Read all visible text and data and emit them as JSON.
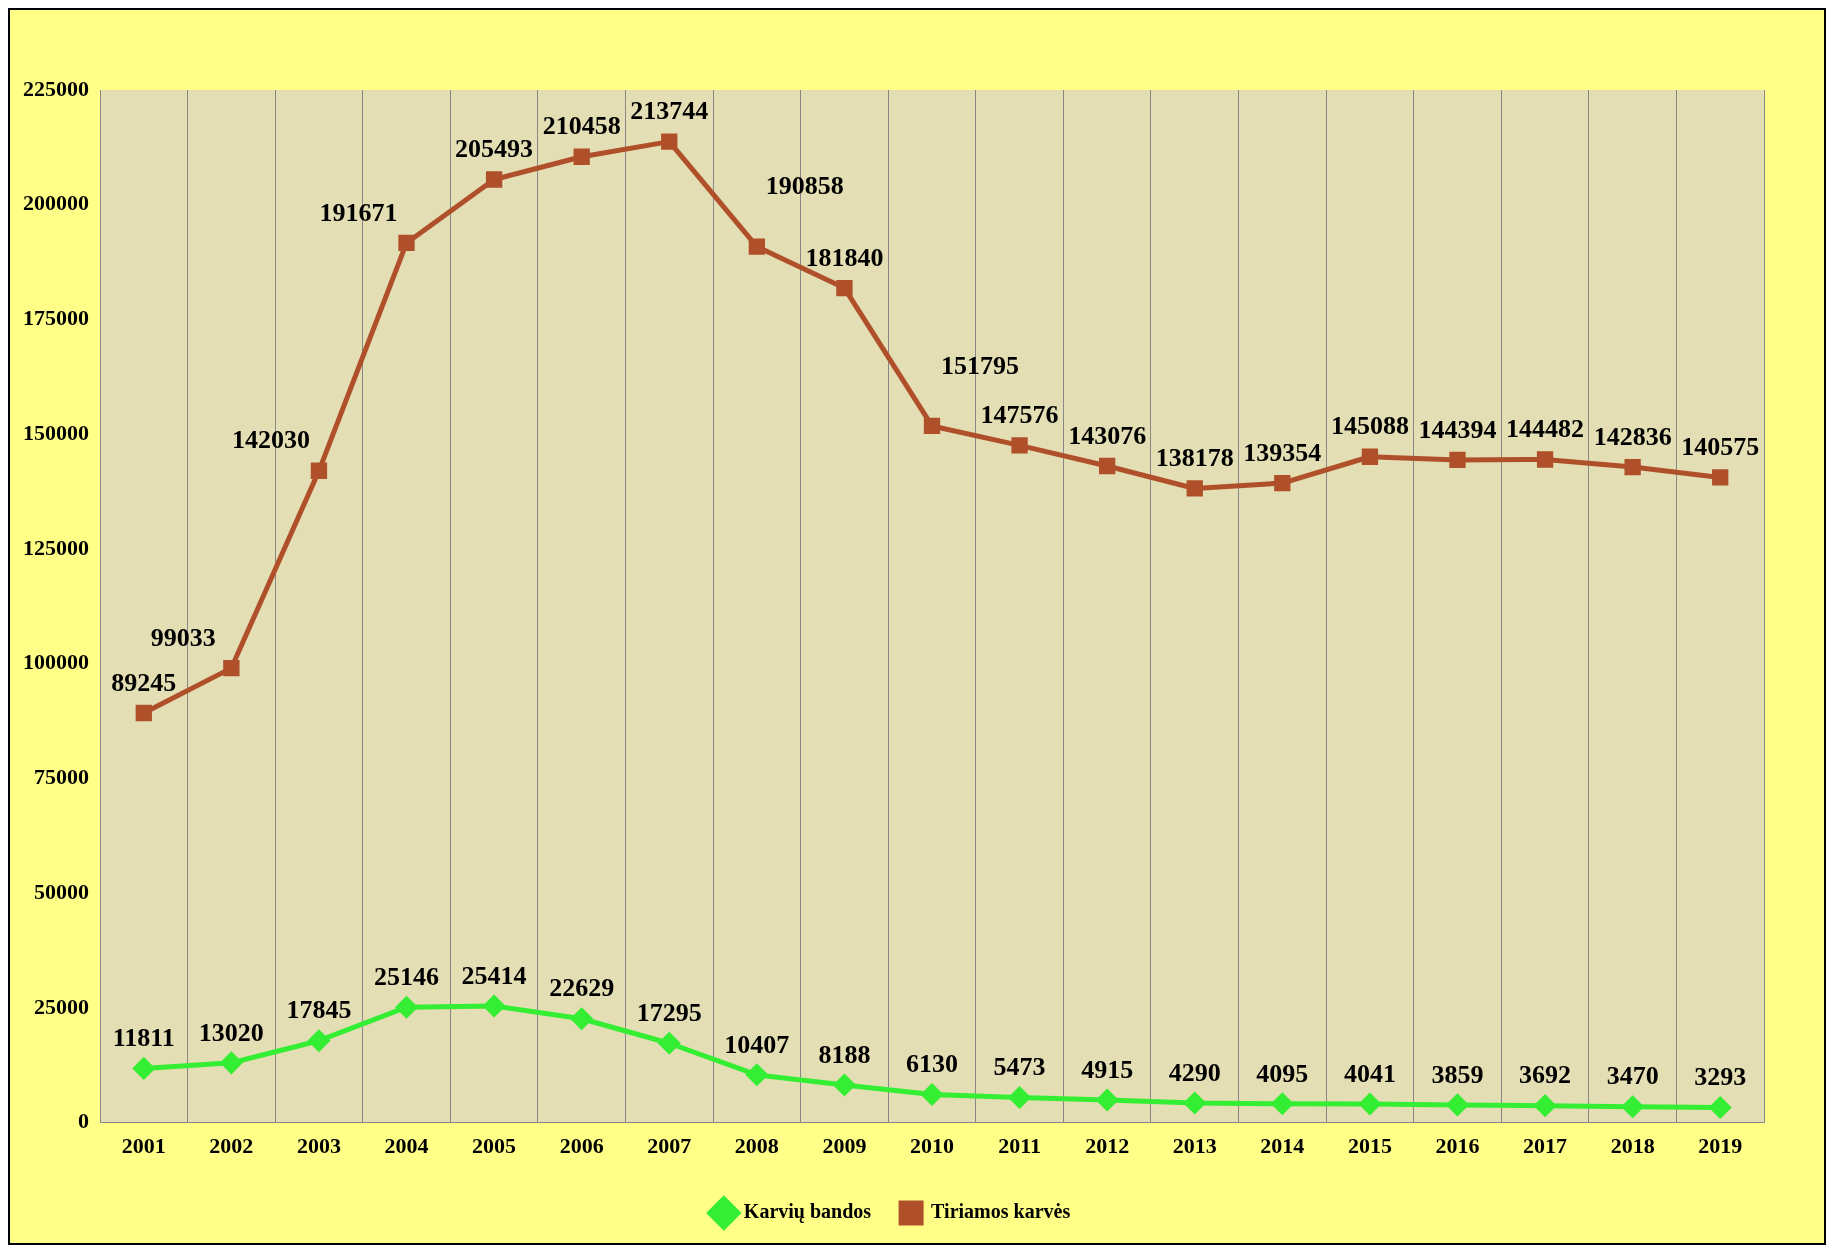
{
  "chart_data": {
    "type": "line",
    "categories": [
      "2001",
      "2002",
      "2003",
      "2004",
      "2005",
      "2006",
      "2007",
      "2008",
      "2009",
      "2010",
      "2011",
      "2012",
      "2013",
      "2014",
      "2015",
      "2016",
      "2017",
      "2018",
      "2019"
    ],
    "series": [
      {
        "name": "Karvių bandos",
        "color": "#33ee33",
        "marker": "diamond",
        "values": [
          11811,
          13020,
          17845,
          25146,
          25414,
          22629,
          17295,
          10407,
          8188,
          6130,
          5473,
          4915,
          4290,
          4095,
          4041,
          3859,
          3692,
          3470,
          3293
        ]
      },
      {
        "name": "Tiriamos karvės",
        "color": "#b0502a",
        "marker": "square",
        "values": [
          89245,
          99033,
          142030,
          191671,
          205493,
          210458,
          213744,
          190858,
          181840,
          151795,
          147576,
          143076,
          138178,
          139354,
          145088,
          144394,
          144482,
          142836,
          140575
        ]
      }
    ],
    "ylim": [
      0,
      225000
    ],
    "yticks": [
      0,
      25000,
      50000,
      75000,
      100000,
      125000,
      150000,
      175000,
      200000,
      225000
    ],
    "grid": "x",
    "legend": "bottom",
    "data_labels": true
  }
}
